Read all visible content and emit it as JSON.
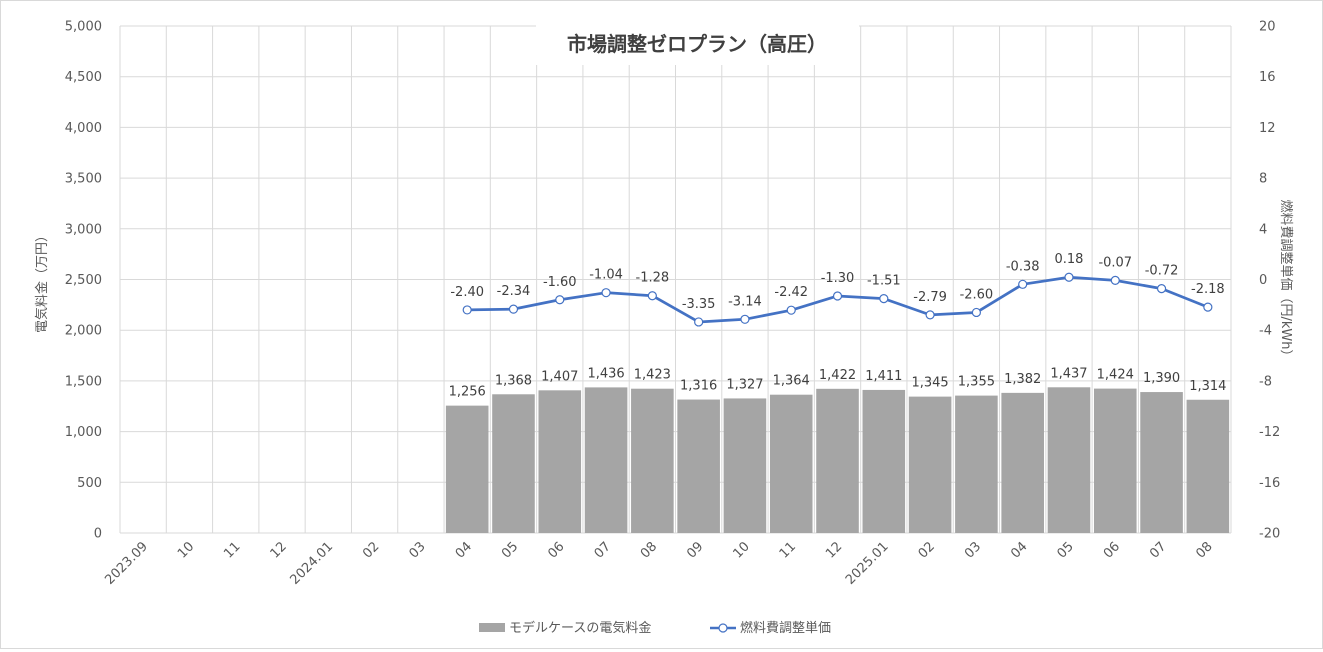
{
  "chart_data": {
    "type": "bar+line",
    "title": "市場調整ゼロプラン（高圧）",
    "categories": [
      "2023.09",
      "10",
      "11",
      "12",
      "2024.01",
      "02",
      "03",
      "04",
      "05",
      "06",
      "07",
      "08",
      "09",
      "10",
      "11",
      "12",
      "2025.01",
      "02",
      "03",
      "04",
      "05",
      "06",
      "07",
      "08"
    ],
    "series": [
      {
        "name": "モデルケースの電気料金",
        "type": "bar",
        "axis": "left",
        "color": "#a5a5a5",
        "values": [
          null,
          null,
          null,
          null,
          null,
          null,
          null,
          1256,
          1368,
          1407,
          1436,
          1423,
          1316,
          1327,
          1364,
          1422,
          1411,
          1345,
          1355,
          1382,
          1437,
          1424,
          1390,
          1314
        ],
        "labels": [
          "",
          "",
          "",
          "",
          "",
          "",
          "",
          "1,256",
          "1,368",
          "1,407",
          "1,436",
          "1,423",
          "1,316",
          "1,327",
          "1,364",
          "1,422",
          "1,411",
          "1,345",
          "1,355",
          "1,382",
          "1,437",
          "1,424",
          "1,390",
          "1,314"
        ]
      },
      {
        "name": "燃料費調整単価",
        "type": "line",
        "axis": "right",
        "color": "#4472c4",
        "values": [
          null,
          null,
          null,
          null,
          null,
          null,
          null,
          -2.4,
          -2.34,
          -1.6,
          -1.04,
          -1.28,
          -3.35,
          -3.14,
          -2.42,
          -1.3,
          -1.51,
          -2.79,
          -2.6,
          -0.38,
          0.18,
          -0.07,
          -0.72,
          -2.18
        ],
        "labels": [
          "",
          "",
          "",
          "",
          "",
          "",
          "",
          "-2.40",
          "-2.34",
          "-1.60",
          "-1.04",
          "-1.28",
          "-3.35",
          "-3.14",
          "-2.42",
          "-1.30",
          "-1.51",
          "-2.79",
          "-2.60",
          "-0.38",
          "0.18",
          "-0.07",
          "-0.72",
          "-2.18"
        ]
      }
    ],
    "left_axis": {
      "label": "電気料金（万円）",
      "ylim": [
        0,
        5000
      ],
      "ticks": [
        0,
        500,
        1000,
        1500,
        2000,
        2500,
        3000,
        3500,
        4000,
        4500,
        5000
      ],
      "tick_labels": [
        "0",
        "500",
        "1,000",
        "1,500",
        "2,000",
        "2,500",
        "3,000",
        "3,500",
        "4,000",
        "4,500",
        "5,000"
      ]
    },
    "right_axis": {
      "label": "燃料費調整単価（円/kWh）",
      "ylim": [
        -20,
        20
      ],
      "ticks": [
        -20,
        -16,
        -12,
        -8,
        -4,
        0,
        4,
        8,
        12,
        16,
        20
      ],
      "tick_labels": [
        "-20",
        "-16",
        "-12",
        "-8",
        "-4",
        "0",
        "4",
        "8",
        "12",
        "16",
        "20"
      ]
    },
    "grid": true,
    "legend_position": "bottom"
  }
}
